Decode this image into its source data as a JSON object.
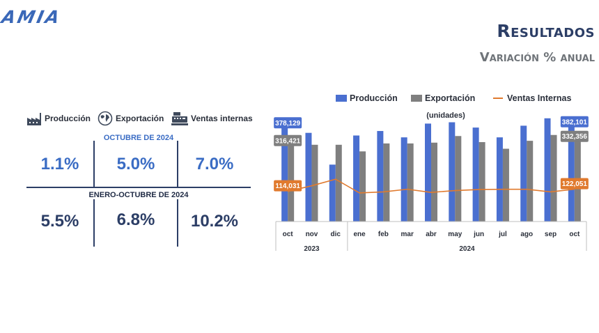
{
  "header": {
    "logo_text": "AMIA",
    "title": "Resultados",
    "subtitle": "Variación % anual"
  },
  "summary": {
    "legend": [
      {
        "label": "Producción",
        "icon": "factory-icon"
      },
      {
        "label": "Exportación",
        "icon": "globe-icon"
      },
      {
        "label": "Ventas internas",
        "icon": "cash-register-icon"
      }
    ],
    "period1": {
      "title": "OCTUBRE DE 2024",
      "values": [
        "1.1%",
        "5.0%",
        "7.0%"
      ]
    },
    "period2": {
      "title": "ENERO-OCTUBRE DE 2024",
      "values": [
        "5.5%",
        "6.8%",
        "10.2%"
      ]
    }
  },
  "colors": {
    "produccion": "#4a6fd0",
    "exportacion": "#7f7f7f",
    "ventas": "#e07a2e",
    "navy": "#2c3e66"
  },
  "chart_data": {
    "type": "bar",
    "unit_label": "(unidades)",
    "categories": [
      "oct",
      "nov",
      "dic",
      "ene",
      "feb",
      "mar",
      "abr",
      "may",
      "jun",
      "jul",
      "ago",
      "sep",
      "oct"
    ],
    "year_groups": [
      {
        "label": "2023",
        "start": 0,
        "end": 2
      },
      {
        "label": "2024",
        "start": 3,
        "end": 12
      }
    ],
    "series": [
      {
        "name": "Producción",
        "type": "bar",
        "color": "#4a6fd0",
        "values": [
          378129,
          335000,
          215000,
          325000,
          342000,
          318000,
          370000,
          375000,
          355000,
          318000,
          362000,
          390000,
          382101
        ]
      },
      {
        "name": "Exportación",
        "type": "bar",
        "color": "#7f7f7f",
        "values": [
          316421,
          290000,
          290000,
          265000,
          295000,
          295000,
          298000,
          323000,
          300000,
          275000,
          305000,
          327000,
          332356
        ]
      },
      {
        "name": "Ventas Internas",
        "type": "line",
        "color": "#e07a2e",
        "values": [
          114031,
          135000,
          160000,
          108000,
          112000,
          122000,
          110000,
          117000,
          121000,
          122000,
          122000,
          112000,
          122051
        ]
      }
    ],
    "data_labels": [
      {
        "series": 0,
        "index": 0,
        "text": "378,129"
      },
      {
        "series": 1,
        "index": 0,
        "text": "316,421"
      },
      {
        "series": 2,
        "index": 0,
        "text": "114,031"
      },
      {
        "series": 0,
        "index": 12,
        "text": "382,101"
      },
      {
        "series": 1,
        "index": 12,
        "text": "332,356"
      },
      {
        "series": 2,
        "index": 12,
        "text": "122,051"
      }
    ],
    "ylim": [
      0,
      400000
    ],
    "legend_position": "top",
    "grid": false
  }
}
